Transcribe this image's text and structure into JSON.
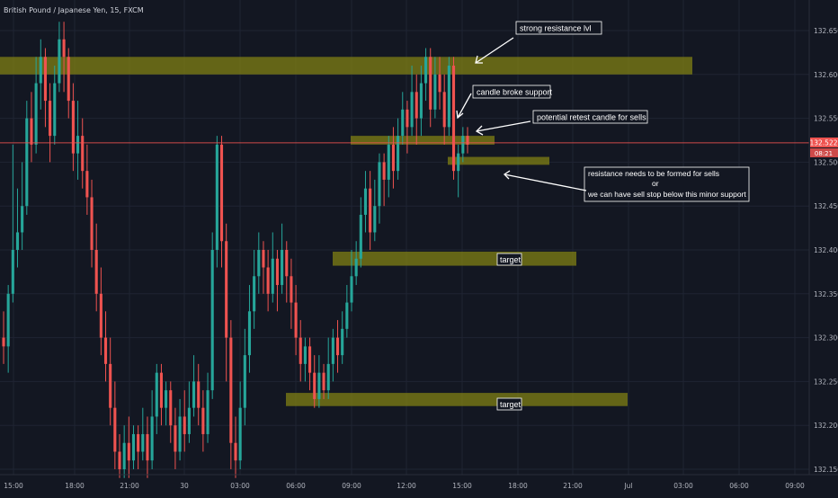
{
  "header": {
    "title": "British Pound / Japanese Yen, 15, FXCM"
  },
  "colors": {
    "background": "#131722",
    "up": "#26a69a",
    "down": "#ef5350",
    "grid": "#1f2433",
    "zone": "#808014",
    "price_line": "#ef5350",
    "axis_text": "#b2b5be"
  },
  "price_axis": {
    "ticks": [
      "132.650",
      "132.600",
      "132.550",
      "132.500",
      "132.450",
      "132.400",
      "132.350",
      "132.300",
      "132.250",
      "132.200",
      "132.150"
    ],
    "current_price": "132.522",
    "countdown": "08:21"
  },
  "time_axis": {
    "ticks": [
      "15:00",
      "18:00",
      "21:00",
      "30",
      "03:00",
      "06:00",
      "09:00",
      "12:00",
      "15:00",
      "18:00",
      "21:00",
      "Jul",
      "03:00",
      "06:00",
      "09:00"
    ]
  },
  "annotations": {
    "strong_resistance": "strong resistance lvl",
    "candle_broke": "candle broke support",
    "potential_retest": "potential retest candle for sells",
    "resistance_note_1": "resistance needs to be formed for sells",
    "resistance_note_2": "or",
    "resistance_note_3": "we can have sell stop below this minor support",
    "target_1": "target",
    "target_2": "target"
  },
  "chart_data": {
    "type": "candlestick",
    "title": "British Pound / Japanese Yen, 15, FXCM",
    "ylim": [
      132.14,
      132.69
    ],
    "xlabels": [
      "15:00",
      "18:00",
      "21:00",
      "30",
      "03:00",
      "06:00",
      "09:00",
      "12:00",
      "15:00",
      "18:00",
      "21:00",
      "Jul",
      "03:00",
      "06:00",
      "09:00"
    ],
    "current_price": 132.522,
    "candles_note": "each candle [open, close, high, low]",
    "candles": [
      [
        132.3,
        132.29,
        132.33,
        132.27
      ],
      [
        132.29,
        132.35,
        132.36,
        132.26
      ],
      [
        132.35,
        132.4,
        132.52,
        132.34
      ],
      [
        132.4,
        132.42,
        132.47,
        132.38
      ],
      [
        132.42,
        132.45,
        132.5,
        132.4
      ],
      [
        132.45,
        132.55,
        132.57,
        132.44
      ],
      [
        132.55,
        132.52,
        132.58,
        132.5
      ],
      [
        132.52,
        132.59,
        132.62,
        132.51
      ],
      [
        132.59,
        132.62,
        132.64,
        132.56
      ],
      [
        132.62,
        132.57,
        132.63,
        132.54
      ],
      [
        132.57,
        132.53,
        132.59,
        132.5
      ],
      [
        132.53,
        132.59,
        132.61,
        132.52
      ],
      [
        132.59,
        132.64,
        132.66,
        132.58
      ],
      [
        132.64,
        132.62,
        132.66,
        132.58
      ],
      [
        132.62,
        132.57,
        132.63,
        132.55
      ],
      [
        132.57,
        132.51,
        132.59,
        132.49
      ],
      [
        132.51,
        132.53,
        132.57,
        132.48
      ],
      [
        132.53,
        132.49,
        132.55,
        132.47
      ],
      [
        132.49,
        132.46,
        132.52,
        132.44
      ],
      [
        132.46,
        132.4,
        132.48,
        132.38
      ],
      [
        132.4,
        132.35,
        132.43,
        132.33
      ],
      [
        132.35,
        132.3,
        132.38,
        132.28
      ],
      [
        132.3,
        132.27,
        132.33,
        132.25
      ],
      [
        132.27,
        132.22,
        132.3,
        132.2
      ],
      [
        132.22,
        132.17,
        132.25,
        132.15
      ],
      [
        132.17,
        132.15,
        132.19,
        132.14
      ],
      [
        132.15,
        132.18,
        132.2,
        132.14
      ],
      [
        132.18,
        132.16,
        132.21,
        132.14
      ],
      [
        132.16,
        132.19,
        132.2,
        132.15
      ],
      [
        132.19,
        132.17,
        132.2,
        132.15
      ],
      [
        132.17,
        132.19,
        132.22,
        132.16
      ],
      [
        132.19,
        132.16,
        132.21,
        132.14
      ],
      [
        132.16,
        132.21,
        132.24,
        132.15
      ],
      [
        132.21,
        132.26,
        132.27,
        132.19
      ],
      [
        132.26,
        132.22,
        132.27,
        132.2
      ],
      [
        132.22,
        132.24,
        132.25,
        132.2
      ],
      [
        132.24,
        132.2,
        132.25,
        132.18
      ],
      [
        132.2,
        132.17,
        132.22,
        132.15
      ],
      [
        132.17,
        132.21,
        132.23,
        132.16
      ],
      [
        132.21,
        132.19,
        132.24,
        132.17
      ],
      [
        132.19,
        132.22,
        132.25,
        132.18
      ],
      [
        132.22,
        132.25,
        132.28,
        132.21
      ],
      [
        132.25,
        132.22,
        132.27,
        132.2
      ],
      [
        132.22,
        132.19,
        132.24,
        132.17
      ],
      [
        132.19,
        132.24,
        132.26,
        132.18
      ],
      [
        132.24,
        132.4,
        132.42,
        132.23
      ],
      [
        132.4,
        132.52,
        132.53,
        132.38
      ],
      [
        132.52,
        132.41,
        132.53,
        132.38
      ],
      [
        132.41,
        132.3,
        132.43,
        132.25
      ],
      [
        132.3,
        132.18,
        132.32,
        132.15
      ],
      [
        132.18,
        132.16,
        132.21,
        132.14
      ],
      [
        132.16,
        132.22,
        132.25,
        132.15
      ],
      [
        132.22,
        132.28,
        132.31,
        132.2
      ],
      [
        132.28,
        132.33,
        132.36,
        132.26
      ],
      [
        132.33,
        132.37,
        132.4,
        132.31
      ],
      [
        132.37,
        132.4,
        132.42,
        132.35
      ],
      [
        132.4,
        132.38,
        132.41,
        132.35
      ],
      [
        132.38,
        132.35,
        132.4,
        132.33
      ],
      [
        132.35,
        132.39,
        132.42,
        132.34
      ],
      [
        132.39,
        132.36,
        132.4,
        132.33
      ],
      [
        132.36,
        132.4,
        132.43,
        132.35
      ],
      [
        132.4,
        132.37,
        132.41,
        132.34
      ],
      [
        132.37,
        132.34,
        132.39,
        132.31
      ],
      [
        132.34,
        132.3,
        132.36,
        132.28
      ],
      [
        132.3,
        132.27,
        132.32,
        132.25
      ],
      [
        132.27,
        132.29,
        132.3,
        132.25
      ],
      [
        132.29,
        132.26,
        132.3,
        132.24
      ],
      [
        132.26,
        132.23,
        132.28,
        132.22
      ],
      [
        132.23,
        132.26,
        132.28,
        132.22
      ],
      [
        132.26,
        132.24,
        132.27,
        132.23
      ],
      [
        132.24,
        132.27,
        132.3,
        132.23
      ],
      [
        132.27,
        132.3,
        132.31,
        132.25
      ],
      [
        132.3,
        132.28,
        132.32,
        132.26
      ],
      [
        132.28,
        132.31,
        132.33,
        132.27
      ],
      [
        132.31,
        132.34,
        132.36,
        132.3
      ],
      [
        132.34,
        132.37,
        132.4,
        132.33
      ],
      [
        132.37,
        132.39,
        132.41,
        132.36
      ],
      [
        132.39,
        132.44,
        132.46,
        132.38
      ],
      [
        132.44,
        132.47,
        132.49,
        132.42
      ],
      [
        132.47,
        132.42,
        132.49,
        132.4
      ],
      [
        132.42,
        132.45,
        132.48,
        132.41
      ],
      [
        132.45,
        132.5,
        132.51,
        132.43
      ],
      [
        132.5,
        132.48,
        132.51,
        132.45
      ],
      [
        132.48,
        132.52,
        132.53,
        132.46
      ],
      [
        132.52,
        132.49,
        132.54,
        132.47
      ],
      [
        132.49,
        132.53,
        132.55,
        132.48
      ],
      [
        132.53,
        132.56,
        132.58,
        132.52
      ],
      [
        132.56,
        132.54,
        132.57,
        132.51
      ],
      [
        132.54,
        132.58,
        132.61,
        132.53
      ],
      [
        132.58,
        132.55,
        132.6,
        132.52
      ],
      [
        132.55,
        132.59,
        132.61,
        132.53
      ],
      [
        132.59,
        132.62,
        132.63,
        132.57
      ],
      [
        132.62,
        132.56,
        132.63,
        132.54
      ],
      [
        132.56,
        132.6,
        132.62,
        132.55
      ],
      [
        132.6,
        132.58,
        132.62,
        132.56
      ],
      [
        132.58,
        132.54,
        132.6,
        132.52
      ],
      [
        132.54,
        132.61,
        132.62,
        132.53
      ],
      [
        132.61,
        132.49,
        132.62,
        132.48
      ],
      [
        132.49,
        132.51,
        132.52,
        132.46
      ],
      [
        132.51,
        132.53,
        132.54,
        132.5
      ],
      [
        132.53,
        132.52,
        132.54,
        132.51
      ]
    ],
    "zones": [
      {
        "label": "strong resistance lvl",
        "y_low": 132.6,
        "y_high": 132.62
      },
      {
        "label": "potential retest candle for sells",
        "y_low": 132.52,
        "y_high": 132.53
      },
      {
        "label": "minor support",
        "y_low": 132.497,
        "y_high": 132.506
      },
      {
        "label": "target",
        "y_low": 132.382,
        "y_high": 132.398
      },
      {
        "label": "target",
        "y_low": 132.222,
        "y_high": 132.237
      }
    ]
  }
}
